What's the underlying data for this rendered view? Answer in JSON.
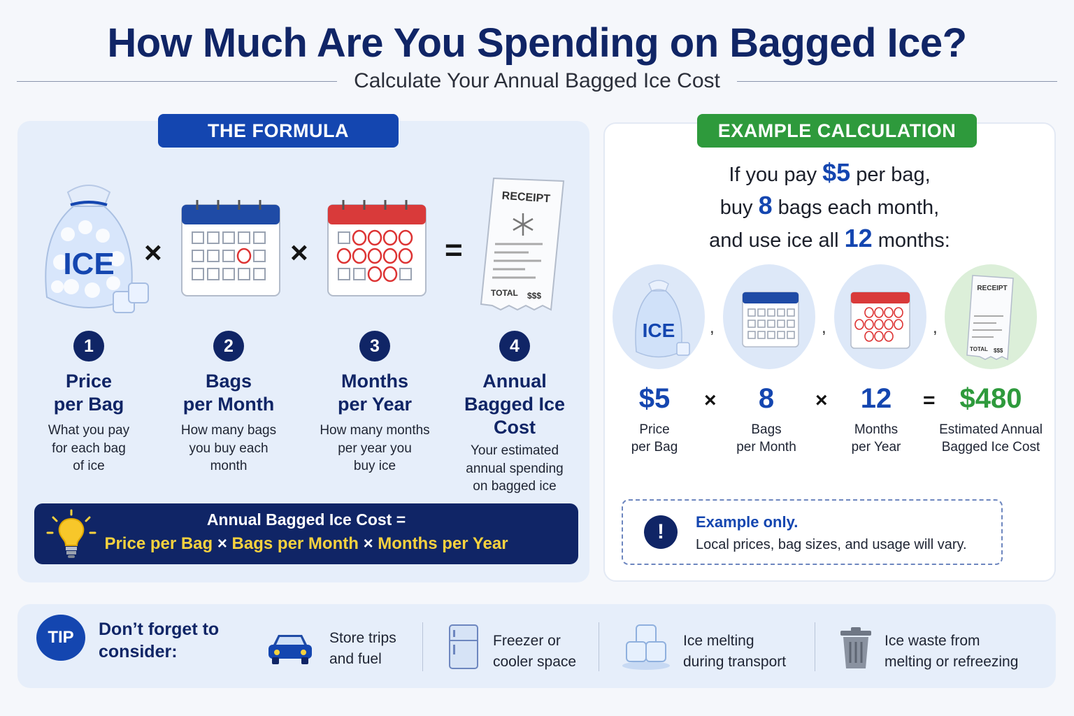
{
  "header": {
    "title": "How Much Are You Spending on Bagged Ice?",
    "subtitle": "Calculate Your Annual Bagged Ice Cost"
  },
  "formula": {
    "tag": "THE FORMULA",
    "steps": [
      {
        "number": "1",
        "title_line1": "Price",
        "title_line2": "per Bag",
        "title_line3": "",
        "desc_line1": "What you pay",
        "desc_line2": "for each bag",
        "desc_line3": "of ice",
        "desc_line4": "",
        "icon": "ice-bag-icon"
      },
      {
        "number": "2",
        "title_line1": "Bags",
        "title_line2": "per Month",
        "title_line3": "",
        "desc_line1": "How many bags",
        "desc_line2": "you buy each",
        "desc_line3": "month",
        "desc_line4": "",
        "icon": "calendar-icon"
      },
      {
        "number": "3",
        "title_line1": "Months",
        "title_line2": "per Year",
        "title_line3": "",
        "desc_line1": "How many months",
        "desc_line2": "per year you",
        "desc_line3": "buy ice",
        "desc_line4": "",
        "icon": "calendar-icon"
      },
      {
        "number": "4",
        "title_line1": "Annual",
        "title_line2": "Bagged Ice",
        "title_line3": "Cost",
        "desc_line1": "Your estimated",
        "desc_line2": "annual spending",
        "desc_line3": "on bagged ice",
        "desc_line4": "",
        "icon": "receipt-icon"
      }
    ],
    "ops": {
      "times": "×",
      "equals": "="
    },
    "ice_label": "ICE",
    "receipt_title": "RECEIPT",
    "receipt_total": "TOTAL",
    "receipt_amount": "$$$",
    "bar_line1": "Annual Bagged Ice Cost =",
    "bar_part1": "Price per Bag",
    "bar_part2": "Bags per Month",
    "bar_part3": "Months per Year",
    "bar_op": "×"
  },
  "example": {
    "tag": "EXAMPLE CALCULATION",
    "line1_pre": "If you pay ",
    "line1_val": "$5",
    "line1_post": " per bag,",
    "line2_pre": "buy ",
    "line2_val": "8",
    "line2_post": " bags each month,",
    "line3_pre": "and use ice all ",
    "line3_val": "12",
    "line3_post": " months:",
    "values": [
      {
        "value": "$5",
        "label_line1": "Price",
        "label_line2": "per Bag"
      },
      {
        "value": "8",
        "label_line1": "Bags",
        "label_line2": "per Month"
      },
      {
        "value": "12",
        "label_line1": "Months",
        "label_line2": "per Year"
      },
      {
        "value": "$480",
        "label_line1": "Estimated Annual",
        "label_line2": "Bagged Ice Cost"
      }
    ],
    "note_title": "Example only.",
    "note_text": "Local prices, bag sizes, and usage will vary.",
    "note_icon": "!"
  },
  "consider": {
    "badge": "TIP",
    "heading_line1": "Don’t forget to",
    "heading_line2": "consider:",
    "items": [
      {
        "line1": "Store trips",
        "line2": "and fuel",
        "icon": "car-icon"
      },
      {
        "line1": "Freezer or",
        "line2": "cooler space",
        "icon": "refrigerator-icon"
      },
      {
        "line1": "Ice melting",
        "line2": "during transport",
        "icon": "ice-cubes-icon"
      },
      {
        "line1": "Ice waste from",
        "line2": "melting or refreezing",
        "icon": "trash-can-icon"
      }
    ]
  },
  "colors": {
    "navy": "#102566",
    "blue": "#1446b0",
    "green": "#2e9a3c",
    "yellow": "#f7d23e",
    "panel": "#e6eefa"
  }
}
